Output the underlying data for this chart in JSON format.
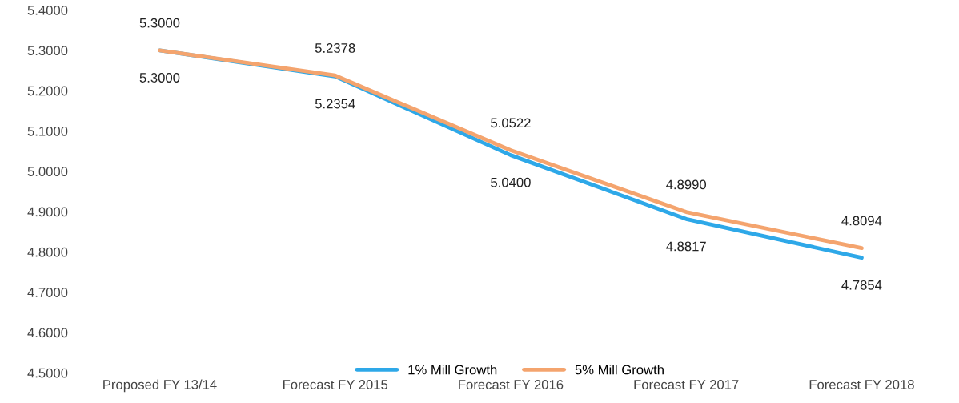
{
  "chart_data": {
    "type": "line",
    "categories": [
      "Proposed FY 13/14",
      "Forecast FY 2015",
      "Forecast FY 2016",
      "Forecast FY 2017",
      "Forecast FY 2018"
    ],
    "series": [
      {
        "name": "1% Mill Growth",
        "color": "#2ea8e8",
        "values": [
          5.3,
          5.2354,
          5.04,
          4.8817,
          4.7854
        ],
        "value_labels": [
          "5.3000",
          "5.2354",
          "5.0400",
          "4.8817",
          "4.7854"
        ]
      },
      {
        "name": "5% Mill Growth",
        "color": "#f4a46e",
        "values": [
          5.3,
          5.2378,
          5.0522,
          4.899,
          4.8094
        ],
        "value_labels": [
          "5.3000",
          "5.2378",
          "5.0522",
          "4.8990",
          "4.8094"
        ]
      }
    ],
    "ylim": [
      4.5,
      5.4
    ],
    "yticks": [
      {
        "value": 4.5,
        "label": "4.5000"
      },
      {
        "value": 4.6,
        "label": "4.6000"
      },
      {
        "value": 4.7,
        "label": "4.7000"
      },
      {
        "value": 4.8,
        "label": "4.8000"
      },
      {
        "value": 4.9,
        "label": "4.9000"
      },
      {
        "value": 5.0,
        "label": "5.0000"
      },
      {
        "value": 5.1,
        "label": "5.1000"
      },
      {
        "value": 5.2,
        "label": "5.2000"
      },
      {
        "value": 5.3,
        "label": "5.3000"
      },
      {
        "value": 5.4,
        "label": "5.4000"
      }
    ],
    "grid": false,
    "legend": "bottom",
    "marker": "none",
    "line_style": "solid"
  }
}
